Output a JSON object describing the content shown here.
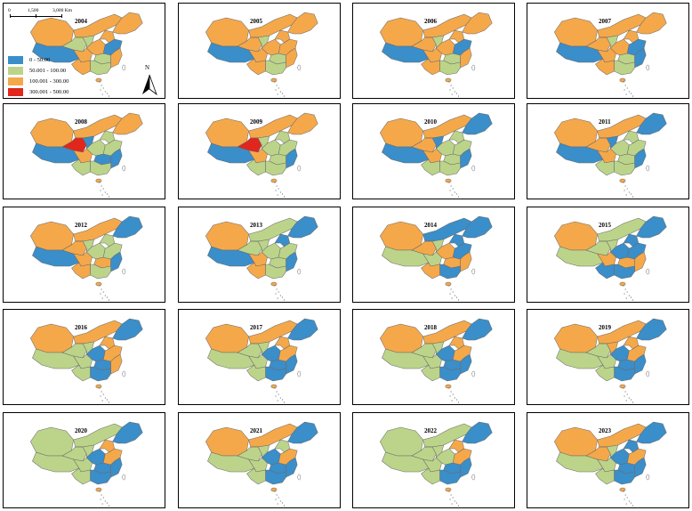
{
  "colors": {
    "class_0": "#3a8ec9",
    "class_1": "#bcd48a",
    "class_2": "#f5a84a",
    "class_3": "#e0261d",
    "border": "#6b6b6b"
  },
  "legend": {
    "items": [
      {
        "label": "0 - 50.00",
        "color": "#3a8ec9"
      },
      {
        "label": "50.001 - 100.00",
        "color": "#bcd48a"
      },
      {
        "label": "100.001 - 300.00",
        "color": "#f5a84a"
      },
      {
        "label": "300.001 - 500.00",
        "color": "#e0261d"
      }
    ]
  },
  "scale_bar": {
    "t0": "0",
    "t1": "1,500",
    "t2": "3,000 Km"
  },
  "north_arrow": {
    "label": "N"
  },
  "maps": [
    {
      "year": "2004",
      "pattern": [
        "o",
        "o",
        "b",
        "g",
        "g",
        "o",
        "o",
        "o",
        "g",
        "o",
        "b",
        "o",
        "g",
        "o"
      ]
    },
    {
      "year": "2005",
      "pattern": [
        "o",
        "o",
        "b",
        "o",
        "g",
        "o",
        "o",
        "o",
        "g",
        "o",
        "o",
        "o",
        "g",
        "o"
      ]
    },
    {
      "year": "2006",
      "pattern": [
        "o",
        "o",
        "b",
        "o",
        "g",
        "o",
        "o",
        "o",
        "g",
        "o",
        "b",
        "o",
        "g",
        "o"
      ]
    },
    {
      "year": "2007",
      "pattern": [
        "o",
        "o",
        "b",
        "o",
        "g",
        "o",
        "o",
        "o",
        "g",
        "o",
        "b",
        "b",
        "g",
        "o"
      ]
    },
    {
      "year": "2008",
      "pattern": [
        "o",
        "o",
        "b",
        "r",
        "b",
        "o",
        "g",
        "g",
        "b",
        "o",
        "g",
        "b",
        "g",
        "g"
      ]
    },
    {
      "year": "2009",
      "pattern": [
        "o",
        "o",
        "b",
        "r",
        "g",
        "o",
        "g",
        "g",
        "g",
        "o",
        "g",
        "b",
        "g",
        "g"
      ]
    },
    {
      "year": "2010",
      "pattern": [
        "o",
        "o",
        "b",
        "o",
        "b",
        "o",
        "g",
        "g",
        "g",
        "b",
        "g",
        "b",
        "g",
        "g"
      ]
    },
    {
      "year": "2011",
      "pattern": [
        "o",
        "o",
        "b",
        "o",
        "b",
        "o",
        "g",
        "g",
        "g",
        "b",
        "g",
        "b",
        "g",
        "g"
      ]
    },
    {
      "year": "2012",
      "pattern": [
        "o",
        "o",
        "b",
        "o",
        "g",
        "o",
        "g",
        "g",
        "o",
        "b",
        "g",
        "b",
        "g",
        "o"
      ]
    },
    {
      "year": "2013",
      "pattern": [
        "o",
        "g",
        "b",
        "g",
        "g",
        "o",
        "g",
        "b",
        "g",
        "b",
        "g",
        "b",
        "g",
        "o"
      ]
    },
    {
      "year": "2014",
      "pattern": [
        "o",
        "b",
        "g",
        "o",
        "g",
        "g",
        "o",
        "b",
        "o",
        "b",
        "b",
        "o",
        "b",
        "o"
      ]
    },
    {
      "year": "2015",
      "pattern": [
        "o",
        "g",
        "g",
        "g",
        "g",
        "o",
        "b",
        "b",
        "o",
        "b",
        "b",
        "o",
        "b",
        "b"
      ]
    },
    {
      "year": "2016",
      "pattern": [
        "o",
        "o",
        "g",
        "g",
        "g",
        "g",
        "b",
        "o",
        "b",
        "b",
        "o",
        "o",
        "b",
        "g"
      ]
    },
    {
      "year": "2017",
      "pattern": [
        "o",
        "o",
        "g",
        "g",
        "g",
        "g",
        "b",
        "o",
        "b",
        "b",
        "o",
        "b",
        "b",
        "g"
      ]
    },
    {
      "year": "2018",
      "pattern": [
        "o",
        "o",
        "g",
        "g",
        "g",
        "g",
        "b",
        "o",
        "b",
        "b",
        "o",
        "b",
        "b",
        "g"
      ]
    },
    {
      "year": "2019",
      "pattern": [
        "o",
        "o",
        "g",
        "g",
        "o",
        "g",
        "b",
        "o",
        "b",
        "b",
        "o",
        "b",
        "b",
        "g"
      ]
    },
    {
      "year": "2020",
      "pattern": [
        "g",
        "g",
        "g",
        "g",
        "g",
        "g",
        "b",
        "o",
        "b",
        "b",
        "o",
        "b",
        "b",
        "g"
      ]
    },
    {
      "year": "2021",
      "pattern": [
        "o",
        "o",
        "g",
        "g",
        "g",
        "g",
        "b",
        "g",
        "b",
        "b",
        "o",
        "b",
        "b",
        "g"
      ]
    },
    {
      "year": "2022",
      "pattern": [
        "g",
        "g",
        "g",
        "g",
        "g",
        "g",
        "g",
        "o",
        "b",
        "b",
        "o",
        "b",
        "b",
        "g"
      ]
    },
    {
      "year": "2023",
      "pattern": [
        "o",
        "o",
        "g",
        "o",
        "g",
        "g",
        "b",
        "b",
        "b",
        "b",
        "o",
        "b",
        "b",
        "g"
      ]
    }
  ]
}
